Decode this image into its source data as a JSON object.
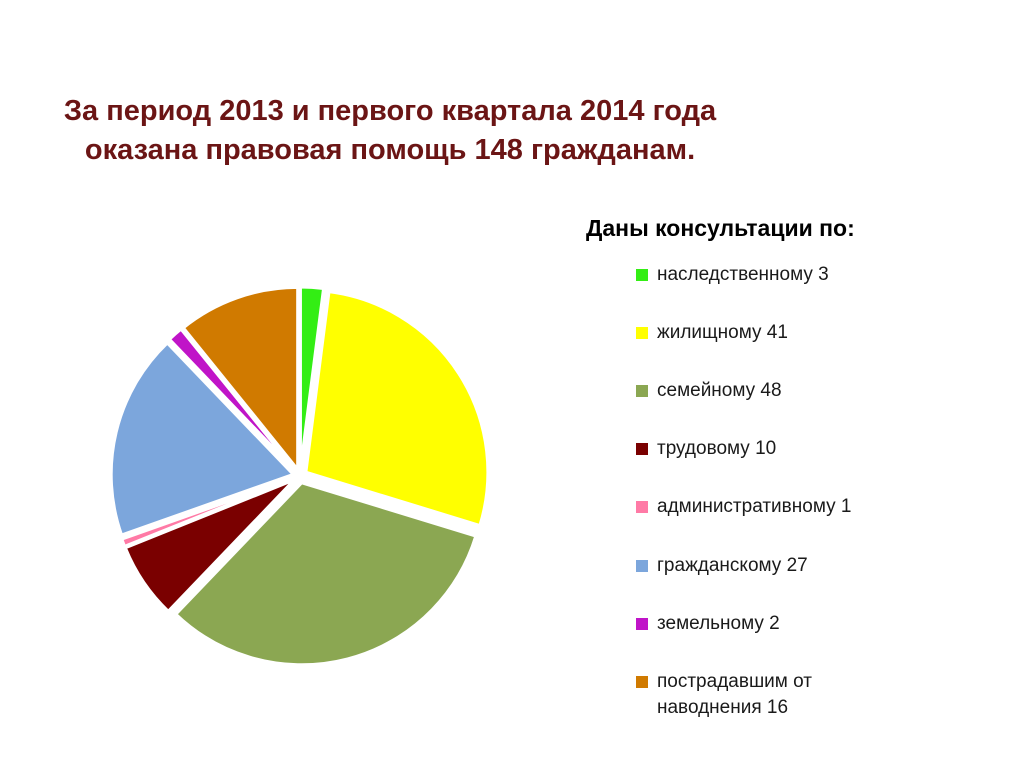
{
  "title": "За период 2013 и первого квартала 2014 года оказана правовая помощь 148 гражданам.",
  "legend_title": "Даны консультации по:",
  "chart_data": {
    "type": "pie",
    "title": "За период 2013 и первого квартала 2014 года оказана правовая помощь 148 гражданам.",
    "legend_title": "Даны консультации по:",
    "legend_position": "right",
    "slices": [
      {
        "label": "наследственному 3",
        "category": "наследственному",
        "value": 3,
        "color": "#33ee14"
      },
      {
        "label": "жилищному 41",
        "category": "жилищному",
        "value": 41,
        "color": "#ffff00"
      },
      {
        "label": "семейному 48",
        "category": "семейному",
        "value": 48,
        "color": "#8ba752"
      },
      {
        "label": "трудовому 10",
        "category": "трудовому",
        "value": 10,
        "color": "#7a0000"
      },
      {
        "label": "административному 1",
        "category": "административному",
        "value": 1,
        "color": "#ff7aa6"
      },
      {
        "label": "гражданскому 27",
        "category": "гражданскому",
        "value": 27,
        "color": "#7ca6dc"
      },
      {
        "label": "земельному 2",
        "category": "земельному",
        "value": 2,
        "color": "#c014c8"
      },
      {
        "label": "пострадавшим от наводнения 16",
        "category": "пострадавшим от наводнения",
        "value": 16,
        "color": "#d07a00"
      }
    ]
  }
}
